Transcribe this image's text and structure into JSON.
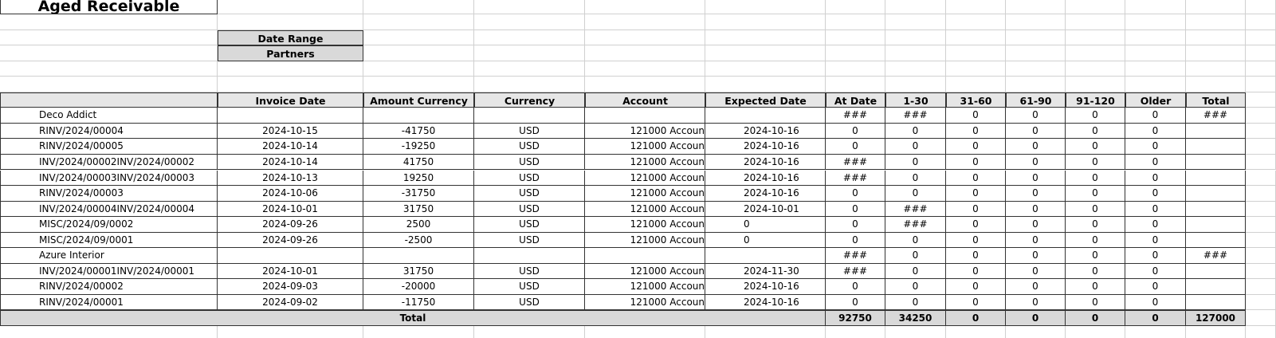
{
  "title": "Aged Receivable",
  "filters": [
    "Date Range",
    "Partners"
  ],
  "table": {
    "columns": [
      "Invoice Date",
      "Amount Currency",
      "Currency",
      "Account",
      "Expected Date",
      "At Date",
      "1-30",
      "31-60",
      "61-90",
      "91-120",
      "Older",
      "Total"
    ],
    "rows": [
      [
        "Deco Addict",
        null,
        null,
        null,
        null,
        null,
        "###",
        "###",
        0,
        0,
        0,
        0,
        "###"
      ],
      [
        "RINV/2024/00004",
        "2024-10-15",
        -41750,
        "USD",
        "121000 Accoun",
        "2024-10-16",
        0,
        0,
        0,
        0,
        0,
        0,
        null
      ],
      [
        "RINV/2024/00005",
        "2024-10-14",
        -19250,
        "USD",
        "121000 Accoun",
        "2024-10-16",
        0,
        0,
        0,
        0,
        0,
        0,
        null
      ],
      [
        "INV/2024/00002INV/2024/00002",
        "2024-10-14",
        41750,
        "USD",
        "121000 Accoun",
        "2024-10-16",
        "###",
        0,
        0,
        0,
        0,
        0,
        null
      ],
      [
        "INV/2024/00003INV/2024/00003",
        "2024-10-13",
        19250,
        "USD",
        "121000 Accoun",
        "2024-10-16",
        "###",
        0,
        0,
        0,
        0,
        0,
        null
      ],
      [
        "RINV/2024/00003",
        "2024-10-06",
        -31750,
        "USD",
        "121000 Accoun",
        "2024-10-16",
        0,
        0,
        0,
        0,
        0,
        0,
        null
      ],
      [
        "INV/2024/00004INV/2024/00004",
        "2024-10-01",
        31750,
        "USD",
        "121000 Accoun",
        "2024-10-01",
        0,
        "###",
        0,
        0,
        0,
        0,
        null
      ],
      [
        "MISC/2024/09/0002",
        "2024-09-26",
        2500,
        "USD",
        "121000 Accoun",
        0,
        0,
        "###",
        0,
        0,
        0,
        0,
        null
      ],
      [
        "MISC/2024/09/0001",
        "2024-09-26",
        -2500,
        "USD",
        "121000 Accoun",
        0,
        0,
        0,
        0,
        0,
        0,
        0,
        null
      ],
      [
        "Azure Interior",
        null,
        null,
        null,
        null,
        null,
        "###",
        0,
        0,
        0,
        0,
        0,
        "###"
      ],
      [
        "INV/2024/00001INV/2024/00001",
        "2024-10-01",
        31750,
        "USD",
        "121000 Accoun",
        "2024-11-30",
        "###",
        0,
        0,
        0,
        0,
        0,
        null
      ],
      [
        "RINV/2024/00002",
        "2024-09-03",
        -20000,
        "USD",
        "121000 Accoun",
        "2024-10-16",
        0,
        0,
        0,
        0,
        0,
        0,
        null
      ],
      [
        "RINV/2024/00001",
        "2024-09-02",
        -11750,
        "USD",
        "121000 Accoun",
        "2024-10-16",
        0,
        0,
        0,
        0,
        0,
        0,
        null
      ]
    ],
    "total": {
      "label": "Total",
      "values": [
        92750,
        34250,
        0,
        0,
        0,
        0,
        127000
      ]
    }
  }
}
